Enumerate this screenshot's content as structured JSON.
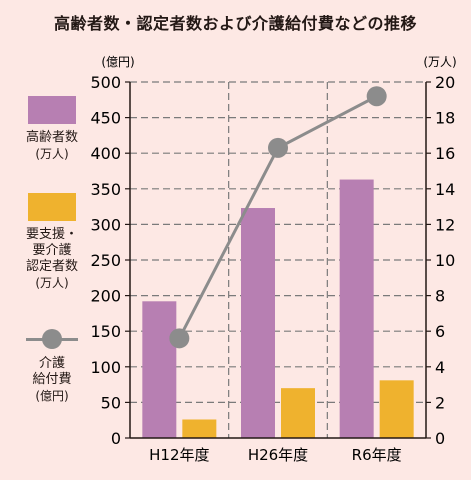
{
  "title": "高齢者数・認定者数および介護給付費などの推移",
  "colors": {
    "background": "#fde8e4",
    "elderly": "#b77fb2",
    "certified": "#efb22e",
    "benefits": "#8c8c8c",
    "grid": "#7a7a7a"
  },
  "legend": [
    {
      "name": "elderly",
      "lines": [
        "高齢者数",
        "(万人)"
      ],
      "icon": "purple-swatch"
    },
    {
      "name": "certified",
      "lines": [
        "要支援・",
        "要介護",
        "認定者数",
        "(万人)"
      ],
      "icon": "yellow-swatch"
    },
    {
      "name": "benefits",
      "lines": [
        "介護",
        "給付費",
        "(億円)"
      ],
      "icon": "gray-line-dot"
    }
  ],
  "chart_data": {
    "type": "bar",
    "title": "高齢者数・認定者数および介護給付費などの推移",
    "categories": [
      "H12年度",
      "H26年度",
      "R6年度"
    ],
    "left_axis": {
      "unit_label": "(億円)",
      "ticks": [
        "0",
        "50",
        "100",
        "150",
        "200",
        "250",
        "300",
        "350",
        "400",
        "450",
        "500"
      ],
      "ylim": [
        0,
        500
      ]
    },
    "right_axis": {
      "unit_label": "(万人)",
      "ticks": [
        "0",
        "2",
        "4",
        "6",
        "8",
        "10",
        "12",
        "14",
        "16",
        "18",
        "20"
      ],
      "ylim": [
        0,
        20
      ]
    },
    "grid": true,
    "series": [
      {
        "name": "高齢者数(万人)",
        "type": "bar",
        "axis": "left",
        "color": "#b77fb2",
        "values": [
          192,
          323,
          363
        ]
      },
      {
        "name": "要支援・要介護認定者数(万人)",
        "type": "bar",
        "axis": "left",
        "color": "#efb22e",
        "values": [
          26,
          70,
          81
        ]
      },
      {
        "name": "介護給付費(億円)",
        "type": "line",
        "axis": "right",
        "color": "#8c8c8c",
        "values": [
          5.6,
          16.3,
          19.2
        ]
      }
    ]
  }
}
